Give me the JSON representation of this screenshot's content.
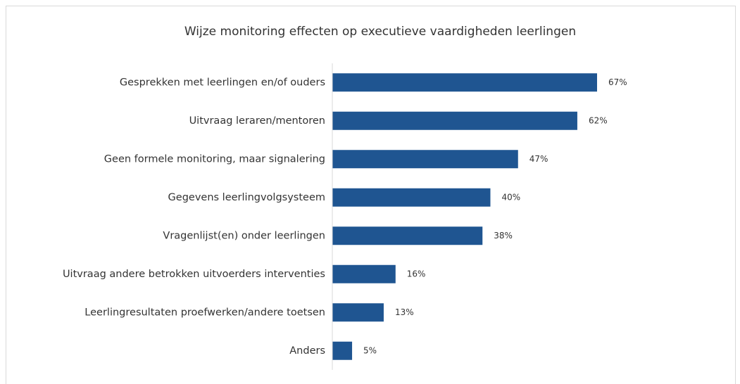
{
  "chart_data": {
    "type": "bar",
    "orientation": "horizontal",
    "title": "Wijze monitoring effecten op executieve vaardigheden leerlingen",
    "categories": [
      "Gesprekken met leerlingen en/of ouders",
      "Uitvraag leraren/mentoren",
      "Geen formele monitoring, maar signalering",
      "Gegevens leerlingvolgsysteem",
      "Vragenlijst(en) onder leerlingen",
      "Uitvraag andere betrokken uitvoerders interventies",
      "Leerlingresultaten proefwerken/andere toetsen",
      "Anders"
    ],
    "values": [
      67,
      62,
      47,
      40,
      38,
      16,
      13,
      5
    ],
    "value_labels": [
      "67%",
      "62%",
      "47%",
      "40%",
      "38%",
      "16%",
      "13%",
      "5%"
    ],
    "color": "#1f5591"
  }
}
